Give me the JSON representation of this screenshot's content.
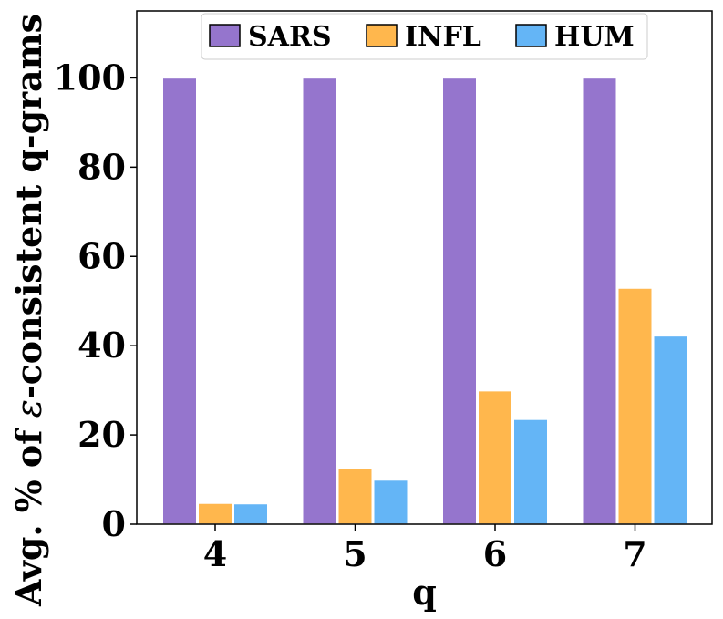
{
  "chart_data": {
    "type": "bar",
    "categories": [
      "4",
      "5",
      "6",
      "7"
    ],
    "series": [
      {
        "name": "SARS",
        "values": [
          100,
          100,
          100,
          100
        ]
      },
      {
        "name": "INFL",
        "values": [
          4.7,
          12.6,
          29.9,
          52.9
        ]
      },
      {
        "name": "HUM",
        "values": [
          4.6,
          9.9,
          23.5,
          42.2
        ]
      }
    ],
    "colors": {
      "SARS": "#9575cd",
      "INFL": "#ffb74d",
      "HUM": "#64b5f6"
    },
    "xlabel": "q",
    "ylabel_prefix": "Avg. % of ",
    "ylabel_symbol": "ε",
    "ylabel_suffix": "-consistent q-grams",
    "ylim": [
      0,
      115
    ],
    "yticks": [
      0,
      20,
      40,
      60,
      80,
      100
    ],
    "grid": false,
    "legend_position": "top-center"
  }
}
